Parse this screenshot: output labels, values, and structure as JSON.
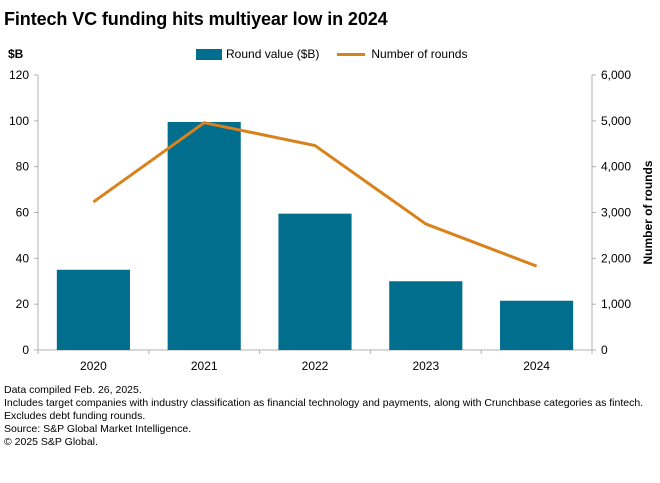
{
  "title": "Fintech VC funding hits multiyear low in 2024",
  "colors": {
    "bar": "#006e8c",
    "line": "#d9821c",
    "axis": "#b0b0b0"
  },
  "chart_data": {
    "type": "bar",
    "categories": [
      "2020",
      "2021",
      "2022",
      "2023",
      "2024"
    ],
    "series": [
      {
        "name": "Round value ($B)",
        "type": "bar",
        "axis": "left",
        "values": [
          35,
          99.5,
          59.5,
          30,
          21.5
        ]
      },
      {
        "name": "Number of rounds",
        "type": "line",
        "axis": "right",
        "values": [
          3230,
          4960,
          4460,
          2750,
          1830
        ]
      }
    ],
    "left_axis": {
      "label": "$B",
      "min": 0,
      "max": 120,
      "ticks": [
        "0",
        "20",
        "40",
        "60",
        "80",
        "100",
        "120"
      ]
    },
    "right_axis": {
      "label": "Number of rounds",
      "min": 0,
      "max": 6000,
      "ticks": [
        "0",
        "1,000",
        "2,000",
        "3,000",
        "4,000",
        "5,000",
        "6,000"
      ]
    },
    "legend": [
      "Round value ($B)",
      "Number of rounds"
    ]
  },
  "notes": [
    "Data compiled Feb. 26, 2025.",
    "Includes target companies with industry classification as financial technology and payments, along with Crunchbase categories as fintech.",
    "Excludes debt funding rounds.",
    "Source: S&P Global Market Intelligence.",
    "© 2025 S&P Global."
  ]
}
